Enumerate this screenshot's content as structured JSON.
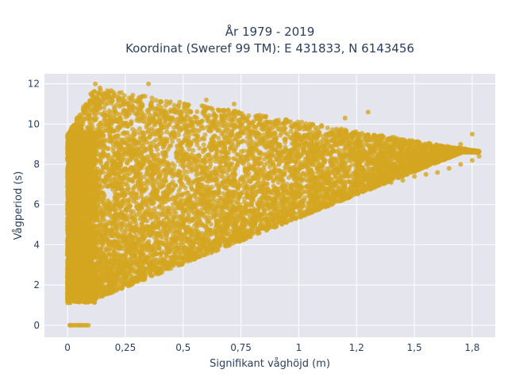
{
  "chart_data": {
    "type": "scatter",
    "title": [
      "År 1979 - 2019",
      "Koordinat (Sweref 99 TM): E 431833, N 6143456"
    ],
    "xlabel": "Signifikant våghöjd (m)",
    "ylabel": "Vågperiod (s)",
    "xlim": [
      -0.1,
      1.85
    ],
    "ylim": [
      -0.6,
      12.5
    ],
    "x_ticks": [
      0,
      0.25,
      0.5,
      0.75,
      1,
      1.25,
      1.5,
      1.75
    ],
    "x_tick_labels": [
      "0",
      "0,25",
      "0,5",
      "0,75",
      "1",
      "1,2",
      "1,5",
      "1,8"
    ],
    "y_ticks": [
      0,
      2,
      4,
      6,
      8,
      10,
      12
    ],
    "y_tick_labels": [
      "0",
      "2",
      "4",
      "6",
      "8",
      "10",
      "12"
    ],
    "grid": true,
    "marker_color": "#d4a620",
    "plot_background": "#e5e5ee",
    "series": [
      {
        "values_note": "",
        "x": [
          0.02,
          0.04,
          0.06,
          0.08,
          0.1,
          0.12,
          0.15,
          0.18,
          0.2,
          0.22,
          0.25,
          0.28,
          0.3,
          0.33,
          0.35,
          0.4,
          0.45,
          0.5,
          0.55,
          0.6,
          0.65,
          0.7,
          0.75,
          0.8,
          0.85,
          0.9,
          0.95,
          1.0,
          1.05,
          1.1,
          1.15,
          1.2,
          1.25,
          1.3,
          1.35,
          1.4,
          1.45,
          1.5,
          1.55,
          1.6,
          1.65,
          1.7,
          1.75,
          1.78,
          0.1,
          0.12,
          0.14,
          0.18,
          0.2,
          0.22,
          0.25,
          0.28,
          0.3,
          0.35,
          0.38,
          0.42,
          0.45,
          0.5,
          0.55,
          0.62,
          0.68,
          0.72,
          0.8,
          0.88,
          0.95,
          1.0,
          1.05,
          1.15,
          1.25,
          1.35,
          1.48,
          1.6,
          1.7,
          0.01,
          0.03,
          0.05,
          0.07,
          0.09,
          0.02,
          0.04,
          0.06,
          0.08,
          0.01,
          0.05,
          0.35,
          0.6,
          0.72,
          0.9,
          1.0,
          1.2,
          1.3,
          1.5,
          1.62,
          1.75
        ],
        "y": [
          1.6,
          1.3,
          1.2,
          1.4,
          1.7,
          2.0,
          2.4,
          2.7,
          3.0,
          3.2,
          3.4,
          3.5,
          3.6,
          3.8,
          3.9,
          4.1,
          4.3,
          4.5,
          4.7,
          4.9,
          5.0,
          5.2,
          5.4,
          5.5,
          5.7,
          5.8,
          5.9,
          6.1,
          6.2,
          6.3,
          6.5,
          6.6,
          6.7,
          6.9,
          7.0,
          7.1,
          7.2,
          7.4,
          7.5,
          7.6,
          7.8,
          8.0,
          8.2,
          8.4,
          11.5,
          12.0,
          11.8,
          11.6,
          11.4,
          11.2,
          11.0,
          10.9,
          10.8,
          10.6,
          10.5,
          10.4,
          10.3,
          10.2,
          10.1,
          10.0,
          9.9,
          9.8,
          9.6,
          9.5,
          9.5,
          9.4,
          9.3,
          9.2,
          9.1,
          9.0,
          8.9,
          8.9,
          9.0,
          0,
          0,
          0,
          0,
          0,
          0,
          0,
          0,
          0,
          0,
          0,
          12.0,
          11.2,
          11.0,
          10.0,
          9.8,
          10.3,
          10.6,
          9.0,
          8.8,
          9.5
        ]
      }
    ]
  }
}
